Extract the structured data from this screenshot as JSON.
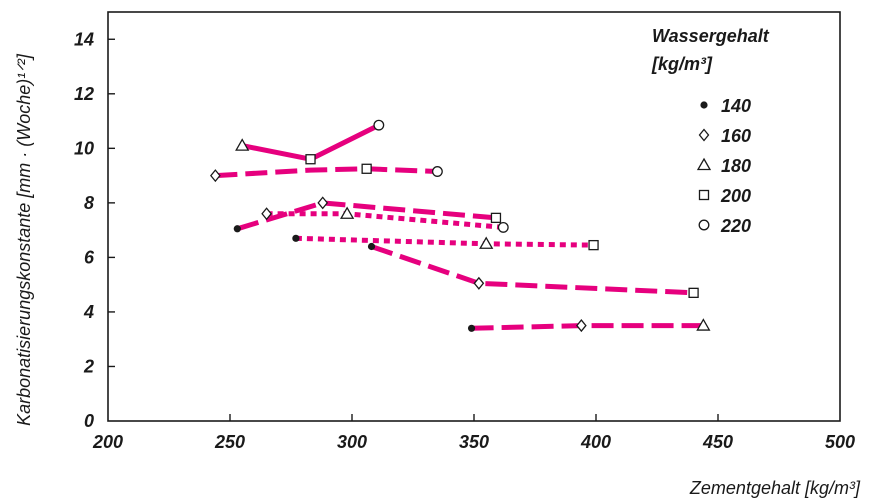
{
  "chart_data": {
    "type": "line",
    "xlabel": "Zementgehalt [kg/m³]",
    "ylabel": "Karbonatisierungskonstante [mm · (Woche)¹ᐟ²]",
    "xlim": [
      200,
      500
    ],
    "ylim": [
      0,
      15
    ],
    "xticks": [
      "200",
      "250",
      "300",
      "350",
      "400",
      "450",
      "500"
    ],
    "yticks": [
      "0",
      "2",
      "4",
      "6",
      "8",
      "10",
      "12",
      "14"
    ],
    "grid": false,
    "legend": {
      "title_line1": "Wassergehalt",
      "title_line2": "[kg/m³]",
      "placement": "top-right",
      "entries": [
        {
          "label": "140",
          "marker": "dot"
        },
        {
          "label": "160",
          "marker": "diamond"
        },
        {
          "label": "180",
          "marker": "triangle"
        },
        {
          "label": "200",
          "marker": "square"
        },
        {
          "label": "220",
          "marker": "circle"
        }
      ]
    },
    "line_color": "#e6007e",
    "lines": [
      {
        "style": "solid",
        "points": [
          [
            255,
            10.1
          ],
          [
            283,
            9.6
          ],
          [
            311,
            10.85
          ]
        ]
      },
      {
        "style": "dashed",
        "points": [
          [
            244,
            9.0
          ],
          [
            283,
            9.2
          ],
          [
            306,
            9.25
          ],
          [
            335,
            9.15
          ]
        ]
      },
      {
        "style": "dashed",
        "points": [
          [
            253,
            7.05
          ],
          [
            288,
            8.0
          ],
          [
            359,
            7.45
          ]
        ]
      },
      {
        "style": "dotted",
        "points": [
          [
            265,
            7.6
          ],
          [
            298,
            7.6
          ],
          [
            362,
            7.1
          ]
        ]
      },
      {
        "style": "dotted",
        "points": [
          [
            277,
            6.7
          ],
          [
            355,
            6.5
          ],
          [
            399,
            6.45
          ]
        ]
      },
      {
        "style": "dashed",
        "points": [
          [
            308,
            6.4
          ],
          [
            352,
            5.05
          ],
          [
            440,
            4.7
          ]
        ]
      },
      {
        "style": "dashed",
        "points": [
          [
            349,
            3.4
          ],
          [
            394,
            3.5
          ],
          [
            444,
            3.5
          ]
        ]
      }
    ],
    "markers": [
      {
        "series": "140",
        "marker": "dot",
        "points": [
          [
            253,
            7.05
          ],
          [
            277,
            6.7
          ],
          [
            308,
            6.4
          ],
          [
            349,
            3.4
          ]
        ]
      },
      {
        "series": "160",
        "marker": "diamond",
        "points": [
          [
            244,
            9.0
          ],
          [
            265,
            7.6
          ],
          [
            288,
            8.0
          ],
          [
            352,
            5.05
          ],
          [
            394,
            3.5
          ]
        ]
      },
      {
        "series": "180",
        "marker": "triangle",
        "points": [
          [
            255,
            10.1
          ],
          [
            298,
            7.6
          ],
          [
            355,
            6.5
          ],
          [
            444,
            3.5
          ]
        ]
      },
      {
        "series": "200",
        "marker": "square",
        "points": [
          [
            283,
            9.6
          ],
          [
            306,
            9.25
          ],
          [
            359,
            7.45
          ],
          [
            399,
            6.45
          ],
          [
            440,
            4.7
          ]
        ]
      },
      {
        "series": "220",
        "marker": "circle",
        "points": [
          [
            311,
            10.85
          ],
          [
            335,
            9.15
          ],
          [
            362,
            7.1
          ]
        ]
      }
    ]
  }
}
